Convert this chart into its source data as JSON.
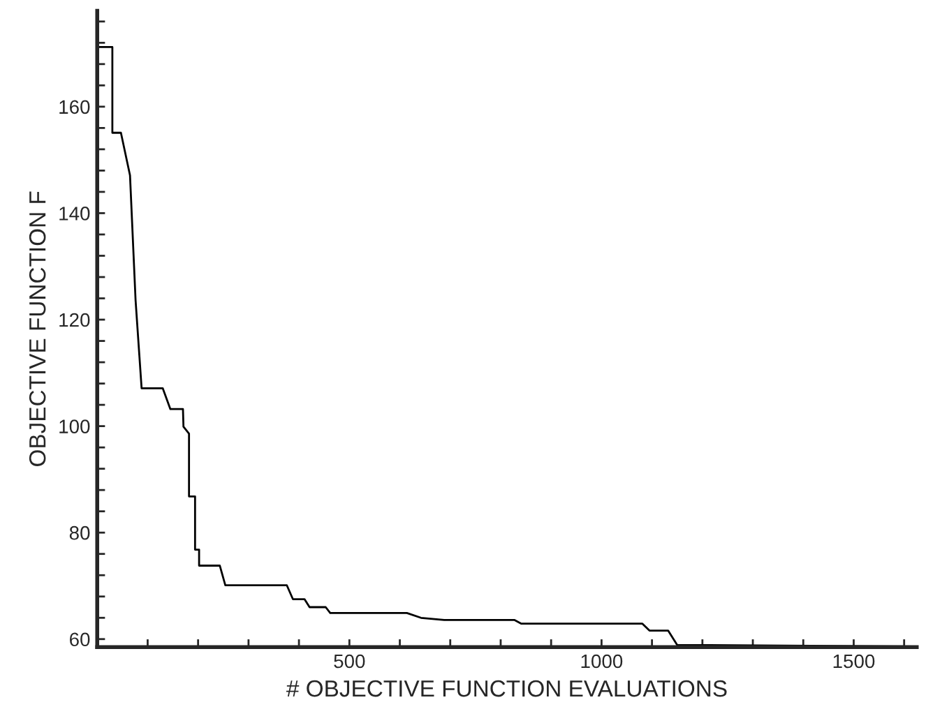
{
  "chart_data": {
    "type": "line",
    "xlabel": "# OBJECTIVE FUNCTION EVALUATIONS",
    "ylabel": "OBJECTIVE FUNCTION F",
    "xlim": [
      0,
      1625
    ],
    "ylim": [
      58.5,
      178
    ],
    "xticks": [
      {
        "value": 100,
        "label": null
      },
      {
        "value": 200,
        "label": null
      },
      {
        "value": 300,
        "label": null
      },
      {
        "value": 400,
        "label": null
      },
      500,
      {
        "value": 600,
        "label": null
      },
      {
        "value": 700,
        "label": null
      },
      {
        "value": 800,
        "label": null
      },
      {
        "value": 900,
        "label": null
      },
      1000,
      {
        "value": 1100,
        "label": null
      },
      {
        "value": 1200,
        "label": null
      },
      {
        "value": 1300,
        "label": null
      },
      {
        "value": 1400,
        "label": null
      },
      1500,
      {
        "value": 1600,
        "label": null
      }
    ],
    "yticks": [
      60,
      {
        "value": 64,
        "label": null
      },
      {
        "value": 68,
        "label": null
      },
      {
        "value": 72,
        "label": null
      },
      {
        "value": 76,
        "label": null
      },
      80,
      {
        "value": 84,
        "label": null
      },
      {
        "value": 88,
        "label": null
      },
      {
        "value": 92,
        "label": null
      },
      {
        "value": 96,
        "label": null
      },
      100,
      {
        "value": 104,
        "label": null
      },
      {
        "value": 108,
        "label": null
      },
      {
        "value": 112,
        "label": null
      },
      {
        "value": 116,
        "label": null
      },
      120,
      {
        "value": 124,
        "label": null
      },
      {
        "value": 128,
        "label": null
      },
      {
        "value": 132,
        "label": null
      },
      {
        "value": 136,
        "label": null
      },
      140,
      {
        "value": 144,
        "label": null
      },
      {
        "value": 148,
        "label": null
      },
      {
        "value": 152,
        "label": null
      },
      {
        "value": 156,
        "label": null
      },
      160,
      {
        "value": 164,
        "label": null
      },
      {
        "value": 168,
        "label": null
      },
      {
        "value": 172,
        "label": null
      },
      {
        "value": 176,
        "label": null
      }
    ],
    "grid": false,
    "marker": "none",
    "line_style": "solid",
    "series": [
      {
        "color": "#000000",
        "x": [
          1,
          2,
          30,
          30,
          47,
          65,
          76,
          88,
          130,
          145,
          170,
          171,
          182,
          182,
          194,
          194,
          202,
          202,
          243,
          254,
          376,
          388,
          411,
          421,
          453,
          462,
          614,
          642,
          688,
          827,
          841,
          1081,
          1095,
          1132,
          1150,
          1620
        ],
        "values": [
          177.5,
          171.2,
          171.2,
          155.1,
          155.1,
          147.1,
          123.7,
          107.1,
          107.1,
          103.2,
          103.2,
          99.9,
          98.6,
          86.8,
          86.8,
          76.8,
          76.8,
          73.8,
          73.8,
          70.1,
          70.1,
          67.5,
          67.5,
          66.0,
          66.0,
          64.9,
          64.9,
          64.0,
          63.6,
          63.6,
          62.9,
          62.9,
          61.6,
          61.6,
          58.9,
          58.6
        ]
      }
    ]
  }
}
